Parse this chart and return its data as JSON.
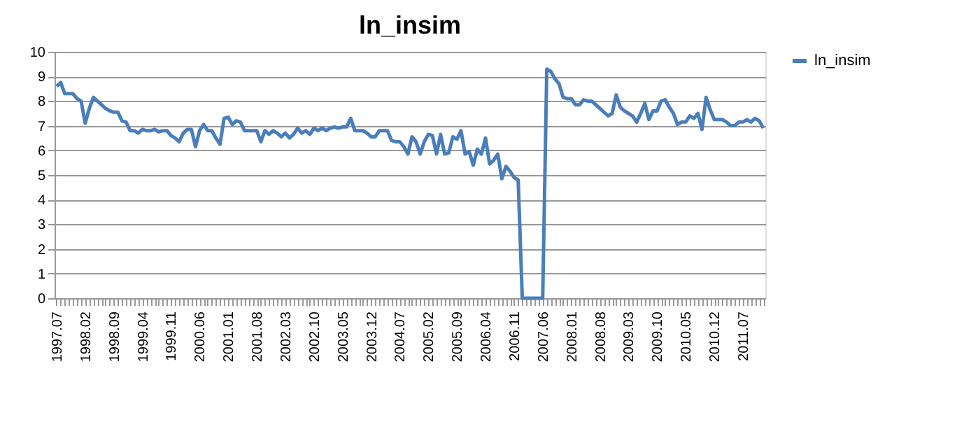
{
  "chart_data": {
    "type": "line",
    "title": "ln_insim",
    "categories": [
      "1997.07",
      null,
      null,
      null,
      null,
      null,
      null,
      "1998.02",
      null,
      null,
      null,
      null,
      null,
      null,
      "1998.09",
      null,
      null,
      null,
      null,
      null,
      null,
      "1999.04",
      null,
      null,
      null,
      null,
      null,
      null,
      "1999.11",
      null,
      null,
      null,
      null,
      null,
      null,
      "2000.06",
      null,
      null,
      null,
      null,
      null,
      null,
      "2001.01",
      null,
      null,
      null,
      null,
      null,
      null,
      "2001.08",
      null,
      null,
      null,
      null,
      null,
      null,
      "2002.03",
      null,
      null,
      null,
      null,
      null,
      null,
      "2002.10",
      null,
      null,
      null,
      null,
      null,
      null,
      "2003.05",
      null,
      null,
      null,
      null,
      null,
      null,
      "2003.12",
      null,
      null,
      null,
      null,
      null,
      null,
      "2004.07",
      null,
      null,
      null,
      null,
      null,
      null,
      "2005.02",
      null,
      null,
      null,
      null,
      null,
      null,
      "2005.09",
      null,
      null,
      null,
      null,
      null,
      null,
      "2006.04",
      null,
      null,
      null,
      null,
      null,
      null,
      "2006.11",
      null,
      null,
      null,
      null,
      null,
      null,
      "2007.06",
      null,
      null,
      null,
      null,
      null,
      null,
      "2008.01",
      null,
      null,
      null,
      null,
      null,
      null,
      "2008.08",
      null,
      null,
      null,
      null,
      null,
      null,
      "2009.03",
      null,
      null,
      null,
      null,
      null,
      null,
      "2009.10",
      null,
      null,
      null,
      null,
      null,
      null,
      "2010.05",
      null,
      null,
      null,
      null,
      null,
      null,
      "2010.12",
      null,
      null,
      null,
      null,
      null,
      null,
      "2011.07",
      null,
      null,
      null,
      null,
      null
    ],
    "series": [
      {
        "name": "ln_insim",
        "color": "#4a7ebb",
        "values": [
          8.6,
          8.75,
          8.3,
          8.3,
          8.3,
          8.1,
          8.0,
          7.1,
          7.7,
          8.15,
          8.0,
          7.85,
          7.7,
          7.6,
          7.55,
          7.55,
          7.2,
          7.15,
          6.8,
          6.8,
          6.7,
          6.85,
          6.8,
          6.8,
          6.85,
          6.75,
          6.8,
          6.8,
          6.6,
          6.5,
          6.35,
          6.7,
          6.85,
          6.85,
          6.15,
          6.8,
          7.05,
          6.8,
          6.8,
          6.5,
          6.25,
          7.3,
          7.35,
          7.05,
          7.2,
          7.15,
          6.8,
          6.8,
          6.8,
          6.8,
          6.35,
          6.8,
          6.65,
          6.8,
          6.7,
          6.55,
          6.7,
          6.5,
          6.65,
          6.9,
          6.7,
          6.8,
          6.65,
          6.9,
          6.8,
          6.9,
          6.8,
          6.9,
          6.95,
          6.9,
          6.95,
          6.95,
          7.3,
          6.8,
          6.8,
          6.8,
          6.7,
          6.55,
          6.55,
          6.8,
          6.8,
          6.8,
          6.4,
          6.35,
          6.35,
          6.15,
          5.85,
          6.55,
          6.35,
          5.85,
          6.35,
          6.65,
          6.6,
          5.85,
          6.65,
          5.85,
          5.9,
          6.55,
          6.45,
          6.8,
          5.85,
          5.95,
          5.4,
          6.05,
          5.85,
          6.5,
          5.45,
          5.6,
          5.85,
          4.85,
          5.35,
          5.15,
          4.9,
          4.8,
          0,
          0,
          0,
          0,
          0,
          0,
          9.3,
          9.2,
          8.9,
          8.7,
          8.15,
          8.1,
          8.1,
          7.85,
          7.85,
          8.05,
          8.0,
          8.0,
          7.85,
          7.7,
          7.55,
          7.4,
          7.5,
          8.25,
          7.75,
          7.6,
          7.5,
          7.4,
          7.15,
          7.5,
          7.9,
          7.25,
          7.6,
          7.6,
          8.0,
          8.05,
          7.75,
          7.5,
          7.05,
          7.15,
          7.15,
          7.4,
          7.3,
          7.5,
          6.85,
          8.15,
          7.65,
          7.25,
          7.25,
          7.25,
          7.15,
          7.0,
          7.0,
          7.15,
          7.15,
          7.25,
          7.15,
          7.3,
          7.2,
          6.9
        ]
      }
    ],
    "ylim": [
      0,
      10
    ],
    "yticks": [
      0,
      1,
      2,
      3,
      4,
      5,
      6,
      7,
      8,
      9,
      10
    ],
    "grid": "y",
    "legend": "right",
    "marker": "none",
    "line_style": "solid"
  }
}
